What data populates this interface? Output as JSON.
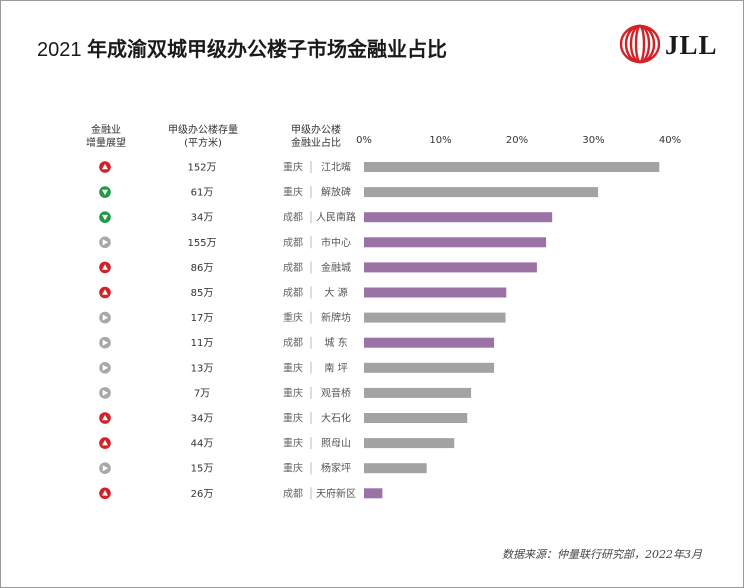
{
  "title_year": "2021",
  "title_text": "年成渝双城甲级办公楼子市场金融业占比",
  "logo_text": "JLL",
  "headers": {
    "outlook": [
      "金融业",
      "增量展望"
    ],
    "stock": [
      "甲级办公楼存量",
      "(平方米)"
    ],
    "market": [
      "甲级办公楼",
      "金融业占比"
    ]
  },
  "source": "数据来源：仲量联行研究部，2022年3月",
  "colors": {
    "chengdu": "#9b72a5",
    "chongqing": "#a3a3a3",
    "up": "#d42027",
    "down": "#1f9a47",
    "flat": "#a8a8a8"
  },
  "chart_data": {
    "type": "bar",
    "orientation": "horizontal",
    "xlim": [
      0,
      40
    ],
    "x_ticks": [
      "0%",
      "10%",
      "20%",
      "30%",
      "40%"
    ],
    "categories": [
      "江北嘴",
      "解放碑",
      "人民南路",
      "市中心",
      "金融城",
      "大  源",
      "新牌坊",
      "城  东",
      "南  坪",
      "观音桥",
      "大石化",
      "照母山",
      "杨家坪",
      "天府新区"
    ],
    "cities": [
      "重庆",
      "重庆",
      "成都",
      "成都",
      "成都",
      "成都",
      "重庆",
      "成都",
      "重庆",
      "重庆",
      "重庆",
      "重庆",
      "重庆",
      "成都"
    ],
    "values": [
      38.6,
      30.6,
      24.6,
      23.8,
      22.6,
      18.6,
      18.5,
      17.0,
      17.0,
      14.0,
      13.5,
      11.8,
      8.2,
      2.4
    ],
    "stock": [
      "152万",
      "61万",
      "34万",
      "155万",
      "86万",
      "85万",
      "17万",
      "11万",
      "13万",
      "7万",
      "34万",
      "44万",
      "15万",
      "26万"
    ],
    "outlook": [
      "up",
      "down",
      "down",
      "flat",
      "up",
      "up",
      "flat",
      "flat",
      "flat",
      "flat",
      "up",
      "up",
      "flat",
      "up"
    ]
  }
}
